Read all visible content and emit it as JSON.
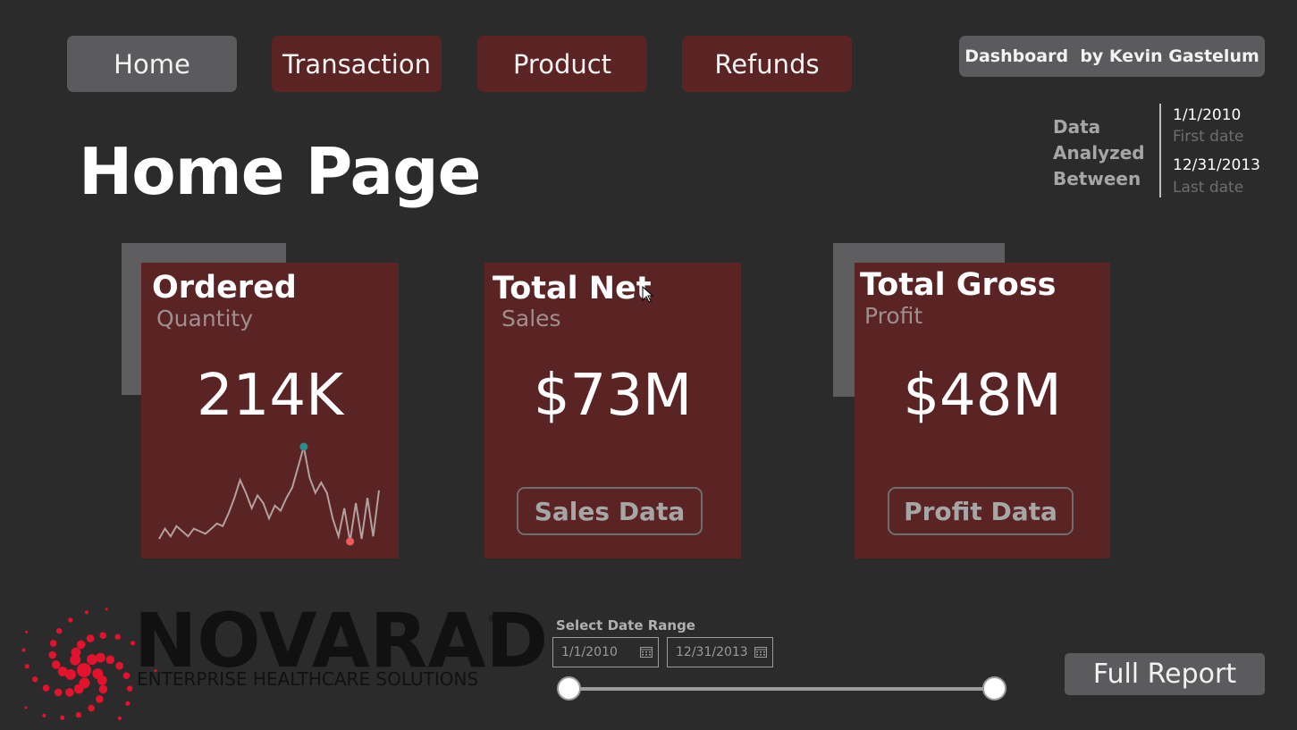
{
  "nav": {
    "home": "Home",
    "transaction": "Transaction",
    "product": "Product",
    "refunds": "Refunds"
  },
  "credit": "Dashboard  by Kevin Gastelum",
  "page_title": "Home Page",
  "data_analyzed": {
    "label_lines": [
      "Data",
      "Analyzed",
      "Between"
    ],
    "first_date": "1/1/2010",
    "first_label": "First date",
    "last_date": "12/31/2013",
    "last_label": "Last date"
  },
  "cards": {
    "ordered": {
      "title": "Ordered",
      "subtitle": "Quantity",
      "value": "214K"
    },
    "net": {
      "title": "Total Net",
      "subtitle": "Sales",
      "value": "$73M",
      "button": "Sales Data"
    },
    "gross": {
      "title": "Total Gross",
      "subtitle": "Profit",
      "value": "$48M",
      "button": "Profit Data"
    }
  },
  "chart_data": {
    "type": "line",
    "title": "",
    "values": [
      2,
      6,
      3,
      7,
      5,
      3,
      6,
      5,
      4,
      6,
      8,
      7,
      12,
      18,
      25,
      20,
      14,
      19,
      16,
      10,
      15,
      13,
      18,
      22,
      30,
      38,
      26,
      20,
      24,
      20,
      10,
      3,
      14,
      1,
      16,
      2,
      18,
      3,
      21
    ],
    "max_index": 25,
    "min_index": 33,
    "colors": {
      "line": "#b3a0a0",
      "max_marker": "#2a8e8e",
      "min_marker": "#ef5b5b"
    }
  },
  "date_range": {
    "label": "Select Date Range",
    "start": "1/1/2010",
    "end": "12/31/2013",
    "slider_start_fraction": 0.0,
    "slider_end_fraction": 1.0
  },
  "full_report": "Full Report",
  "logo": {
    "name": "NOVARAD",
    "tagline": "ENTERPRISE HEALTHCARE SOLUTIONS",
    "registered": "®",
    "mark_color": "#e3122d"
  },
  "colors": {
    "background": "#2b2b2b",
    "card": "#5a2324",
    "gray_button": "#5b5b5d"
  }
}
